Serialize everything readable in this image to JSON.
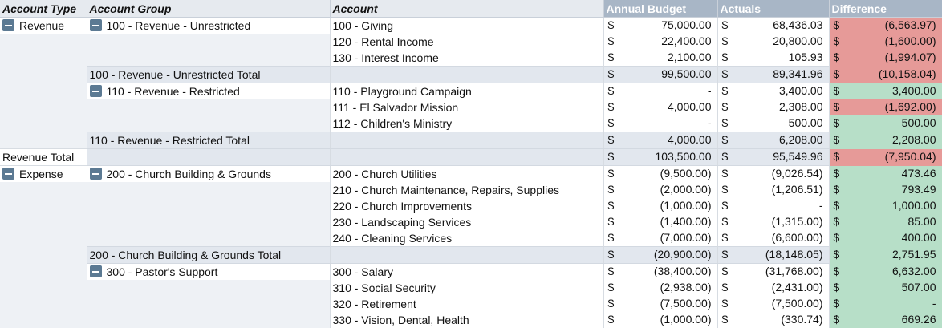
{
  "headers": {
    "account_type": "Account Type",
    "account_group": "Account Group",
    "account": "Account",
    "annual_budget": "Annual Budget",
    "actuals": "Actuals",
    "difference": "Difference"
  },
  "currency": "$",
  "colors": {
    "positive": "#b7dfc8",
    "negative": "#e69a98",
    "value_header": "#a8b6c6"
  },
  "rows": [
    {
      "kind": "detail",
      "type": "Revenue",
      "type_toggle": true,
      "group": "100 - Revenue - Unrestricted",
      "group_toggle": true,
      "account": "100 - Giving",
      "budget": "75,000.00",
      "actual": "68,436.03",
      "diff": "(6,563.97)",
      "diff_sign": "neg"
    },
    {
      "kind": "detail",
      "type": "",
      "group": "",
      "account": "120 - Rental Income",
      "budget": "22,400.00",
      "actual": "20,800.00",
      "diff": "(1,600.00)",
      "diff_sign": "neg"
    },
    {
      "kind": "detail",
      "type": "",
      "group": "",
      "account": "130 - Interest Income",
      "budget": "2,100.00",
      "actual": "105.93",
      "diff": "(1,994.07)",
      "diff_sign": "neg"
    },
    {
      "kind": "group_total",
      "type": "",
      "group": "100 - Revenue - Unrestricted Total",
      "account": "",
      "budget": "99,500.00",
      "actual": "89,341.96",
      "diff": "(10,158.04)",
      "diff_sign": "neg"
    },
    {
      "kind": "detail",
      "type": "",
      "group": "110 - Revenue - Restricted",
      "group_toggle": true,
      "account": "110 - Playground Campaign",
      "budget": "-",
      "actual": "3,400.00",
      "diff": "3,400.00",
      "diff_sign": "pos"
    },
    {
      "kind": "detail",
      "type": "",
      "group": "",
      "account": "111 - El Salvador Mission",
      "budget": "4,000.00",
      "actual": "2,308.00",
      "diff": "(1,692.00)",
      "diff_sign": "neg"
    },
    {
      "kind": "detail",
      "type": "",
      "group": "",
      "account": "112 - Children's Ministry",
      "budget": "-",
      "actual": "500.00",
      "diff": "500.00",
      "diff_sign": "pos"
    },
    {
      "kind": "group_total",
      "type": "",
      "group": "110 - Revenue - Restricted Total",
      "account": "",
      "budget": "4,000.00",
      "actual": "6,208.00",
      "diff": "2,208.00",
      "diff_sign": "pos"
    },
    {
      "kind": "type_total",
      "type": "Revenue Total",
      "group": "",
      "account": "",
      "budget": "103,500.00",
      "actual": "95,549.96",
      "diff": "(7,950.04)",
      "diff_sign": "neg"
    },
    {
      "kind": "detail",
      "type": "Expense",
      "type_toggle": true,
      "group": "200 - Church Building & Grounds",
      "group_toggle": true,
      "account": "200 - Church Utilities",
      "budget": "(9,500.00)",
      "actual": "(9,026.54)",
      "diff": "473.46",
      "diff_sign": "pos"
    },
    {
      "kind": "detail",
      "type": "",
      "group": "",
      "account": "210 - Church Maintenance, Repairs, Supplies",
      "budget": "(2,000.00)",
      "actual": "(1,206.51)",
      "diff": "793.49",
      "diff_sign": "pos"
    },
    {
      "kind": "detail",
      "type": "",
      "group": "",
      "account": "220 - Church Improvements",
      "budget": "(1,000.00)",
      "actual": "-",
      "diff": "1,000.00",
      "diff_sign": "pos"
    },
    {
      "kind": "detail",
      "type": "",
      "group": "",
      "account": "230 - Landscaping Services",
      "budget": "(1,400.00)",
      "actual": "(1,315.00)",
      "diff": "85.00",
      "diff_sign": "pos"
    },
    {
      "kind": "detail",
      "type": "",
      "group": "",
      "account": "240 - Cleaning Services",
      "budget": "(7,000.00)",
      "actual": "(6,600.00)",
      "diff": "400.00",
      "diff_sign": "pos"
    },
    {
      "kind": "group_total",
      "type": "",
      "group": "200 - Church Building & Grounds Total",
      "account": "",
      "budget": "(20,900.00)",
      "actual": "(18,148.05)",
      "diff": "2,751.95",
      "diff_sign": "pos"
    },
    {
      "kind": "detail",
      "type": "",
      "group": "300 - Pastor's Support",
      "group_toggle": true,
      "account": "300 - Salary",
      "budget": "(38,400.00)",
      "actual": "(31,768.00)",
      "diff": "6,632.00",
      "diff_sign": "pos"
    },
    {
      "kind": "detail",
      "type": "",
      "group": "",
      "account": "310 - Social Security",
      "budget": "(2,938.00)",
      "actual": "(2,431.00)",
      "diff": "507.00",
      "diff_sign": "pos"
    },
    {
      "kind": "detail",
      "type": "",
      "group": "",
      "account": "320 - Retirement",
      "budget": "(7,500.00)",
      "actual": "(7,500.00)",
      "diff": "-",
      "diff_sign": "pos"
    },
    {
      "kind": "detail",
      "type": "",
      "group": "",
      "account": "330 - Vision, Dental, Health",
      "budget": "(1,000.00)",
      "actual": "(330.74)",
      "diff": "669.26",
      "diff_sign": "pos"
    }
  ]
}
